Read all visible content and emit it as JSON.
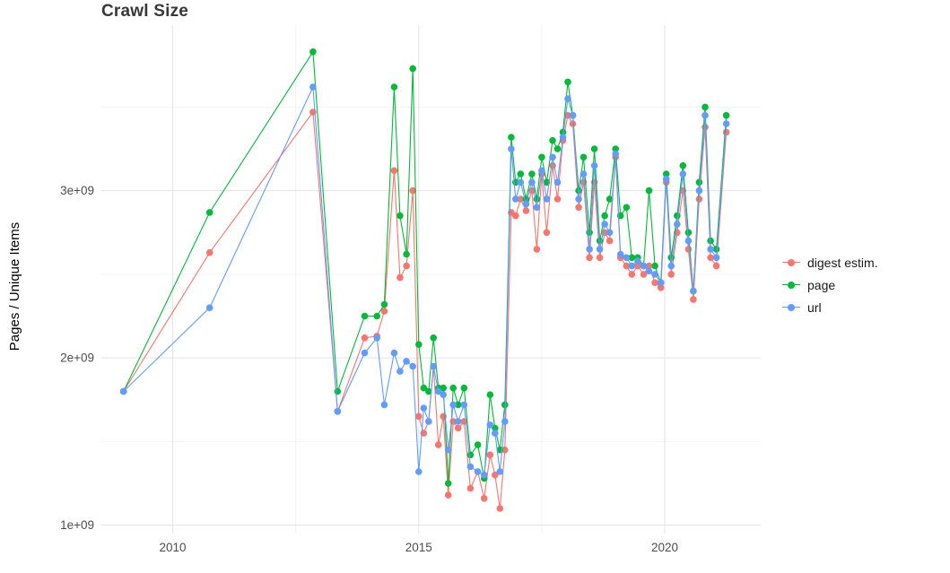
{
  "chart_data": {
    "type": "line",
    "title": "Crawl Size",
    "xlabel": "",
    "ylabel": "Pages / Unique Items",
    "value_unit": "billions (1e9) of pages / unique items",
    "grid": true,
    "legend_position": "right",
    "xlim": [
      2008.55,
      2021.95
    ],
    "ylim": [
      0.95,
      3.99
    ],
    "x_ticks": [
      {
        "value": 2010,
        "label": "2010"
      },
      {
        "value": 2015,
        "label": "2015"
      },
      {
        "value": 2020,
        "label": "2020"
      }
    ],
    "y_ticks": [
      {
        "value": 1,
        "label": "1e+09"
      },
      {
        "value": 2,
        "label": "2e+09"
      },
      {
        "value": 3,
        "label": "3e+09"
      }
    ],
    "x_minor": [
      2012.5,
      2017.5
    ],
    "y_minor": [
      1.5,
      2.5,
      3.5
    ],
    "grid_major_color": "#e3e3e3",
    "grid_minor_color": "#f2f2f2",
    "x": [
      2009.0,
      2010.75,
      2012.85,
      2013.35,
      2013.9,
      2014.15,
      2014.3,
      2014.5,
      2014.62,
      2014.75,
      2014.88,
      2015.0,
      2015.1,
      2015.2,
      2015.3,
      2015.4,
      2015.5,
      2015.6,
      2015.7,
      2015.8,
      2015.92,
      2016.05,
      2016.2,
      2016.33,
      2016.45,
      2016.55,
      2016.65,
      2016.75,
      2016.88,
      2016.97,
      2017.07,
      2017.18,
      2017.3,
      2017.4,
      2017.5,
      2017.6,
      2017.72,
      2017.82,
      2017.93,
      2018.03,
      2018.13,
      2018.25,
      2018.35,
      2018.47,
      2018.57,
      2018.68,
      2018.78,
      2018.88,
      2019.0,
      2019.1,
      2019.22,
      2019.33,
      2019.45,
      2019.57,
      2019.68,
      2019.8,
      2019.92,
      2020.03,
      2020.13,
      2020.25,
      2020.37,
      2020.48,
      2020.58,
      2020.7,
      2020.82,
      2020.93,
      2021.05,
      2021.25
    ],
    "series": [
      {
        "id": "digest",
        "name": "digest estim.",
        "color": "#F8766D",
        "values": [
          1.8,
          2.63,
          3.47,
          1.68,
          2.12,
          2.13,
          2.28,
          3.12,
          2.48,
          2.55,
          3.0,
          1.65,
          1.55,
          1.62,
          1.95,
          1.48,
          1.65,
          1.18,
          1.62,
          1.58,
          1.62,
          1.22,
          1.32,
          1.16,
          1.42,
          1.3,
          1.1,
          1.45,
          2.87,
          2.85,
          2.95,
          2.88,
          3.0,
          2.65,
          3.1,
          2.75,
          3.15,
          2.95,
          3.3,
          3.45,
          3.4,
          2.9,
          3.05,
          2.6,
          3.05,
          2.6,
          2.75,
          2.7,
          3.2,
          2.6,
          2.55,
          2.5,
          2.55,
          2.5,
          2.55,
          2.45,
          2.42,
          3.05,
          2.5,
          2.75,
          3.0,
          2.65,
          2.35,
          2.95,
          3.38,
          2.6,
          2.55,
          3.35
        ]
      },
      {
        "id": "page",
        "name": "page",
        "color": "#00BA38",
        "values": [
          1.8,
          2.87,
          3.83,
          1.8,
          2.25,
          2.25,
          2.32,
          3.62,
          2.85,
          2.62,
          3.73,
          2.08,
          1.82,
          1.8,
          2.12,
          1.82,
          1.82,
          1.25,
          1.82,
          1.72,
          1.82,
          1.42,
          1.48,
          1.28,
          1.78,
          1.58,
          1.45,
          1.72,
          3.32,
          3.05,
          3.1,
          2.95,
          3.1,
          2.95,
          3.2,
          3.05,
          3.3,
          3.25,
          3.35,
          3.65,
          3.45,
          3.0,
          3.2,
          2.75,
          3.25,
          2.7,
          2.85,
          2.95,
          3.25,
          2.85,
          2.9,
          2.6,
          2.6,
          2.55,
          3.0,
          2.55,
          2.45,
          3.1,
          2.6,
          2.85,
          3.15,
          2.75,
          2.4,
          3.05,
          3.5,
          2.7,
          2.65,
          3.45
        ]
      },
      {
        "id": "url",
        "name": "url",
        "color": "#619CFF",
        "values": [
          1.8,
          2.3,
          3.62,
          1.68,
          2.03,
          2.12,
          1.72,
          2.03,
          1.92,
          1.98,
          1.95,
          1.32,
          1.7,
          1.62,
          1.95,
          1.8,
          1.78,
          1.45,
          1.72,
          1.62,
          1.72,
          1.35,
          1.32,
          1.3,
          1.6,
          1.55,
          1.32,
          1.62,
          3.25,
          2.95,
          3.05,
          2.92,
          3.05,
          2.9,
          3.12,
          2.95,
          3.2,
          3.05,
          3.32,
          3.55,
          3.45,
          2.95,
          3.1,
          2.65,
          3.15,
          2.65,
          2.8,
          2.75,
          3.22,
          2.62,
          2.6,
          2.55,
          2.58,
          2.55,
          2.52,
          2.5,
          2.45,
          3.07,
          2.55,
          2.8,
          3.1,
          2.7,
          2.4,
          3.0,
          3.45,
          2.65,
          2.6,
          3.4
        ]
      }
    ]
  }
}
